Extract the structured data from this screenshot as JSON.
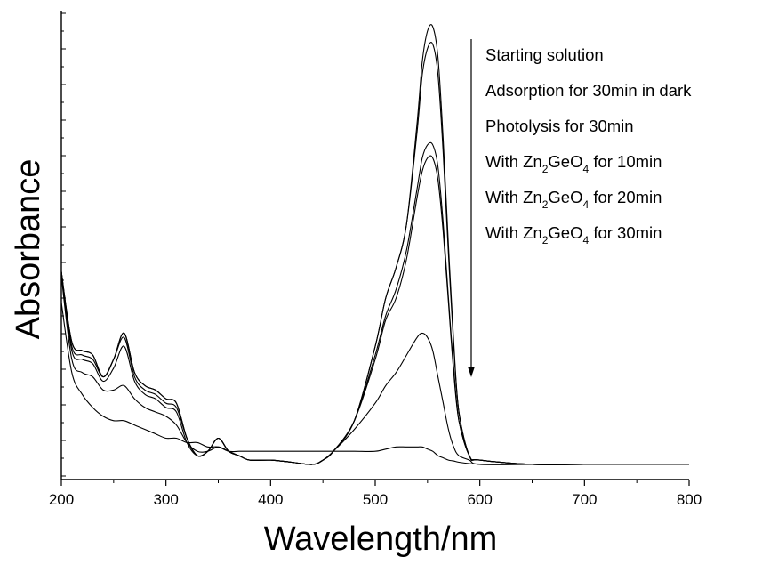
{
  "chart_data": {
    "type": "line",
    "title": "",
    "xlabel": "Wavelength/nm",
    "ylabel": "Absorbance",
    "xlim": [
      200,
      800
    ],
    "ylim": [
      0,
      1
    ],
    "yticks_labeled": false,
    "x_ticks": [
      200,
      300,
      400,
      500,
      600,
      700,
      800
    ],
    "x_tick_labels": [
      "200",
      "300",
      "400",
      "500",
      "600",
      "700",
      "800"
    ],
    "grid": false,
    "legend": {
      "placement": "top-right",
      "arrow": "downward",
      "entries": [
        {
          "text": "Starting solution"
        },
        {
          "text": "Adsorption for 30min in dark"
        },
        {
          "text": "Photolysis for 30min"
        },
        {
          "prefix": "With Zn",
          "sub1": "2",
          "mid": "GeO",
          "sub2": "4",
          "suffix": " for 10min"
        },
        {
          "prefix": "With Zn",
          "sub1": "2",
          "mid": "GeO",
          "sub2": "4",
          "suffix": " for 20min"
        },
        {
          "prefix": "With Zn",
          "sub1": "2",
          "mid": "GeO",
          "sub2": "4",
          "suffix": " for 30min"
        }
      ]
    },
    "x": [
      200,
      210,
      220,
      230,
      240,
      250,
      260,
      270,
      280,
      290,
      300,
      310,
      320,
      330,
      340,
      350,
      360,
      370,
      380,
      400,
      420,
      440,
      450,
      460,
      480,
      500,
      510,
      520,
      530,
      540,
      545,
      550,
      555,
      560,
      565,
      570,
      575,
      580,
      590,
      600,
      650,
      700,
      800
    ],
    "series": [
      {
        "values": [
          0.44,
          0.28,
          0.26,
          0.25,
          0.2,
          0.24,
          0.3,
          0.21,
          0.18,
          0.17,
          0.15,
          0.14,
          0.06,
          0.02,
          0.03,
          0.06,
          0.03,
          0.02,
          0.01,
          0.01,
          0.005,
          0.0,
          0.01,
          0.03,
          0.1,
          0.27,
          0.38,
          0.45,
          0.55,
          0.78,
          0.92,
          0.99,
          1.0,
          0.93,
          0.74,
          0.5,
          0.28,
          0.12,
          0.02,
          0.01,
          0.0,
          0.0,
          0.0
        ]
      },
      {
        "values": [
          0.44,
          0.28,
          0.26,
          0.25,
          0.2,
          0.24,
          0.3,
          0.21,
          0.18,
          0.17,
          0.15,
          0.14,
          0.06,
          0.02,
          0.03,
          0.06,
          0.03,
          0.02,
          0.01,
          0.01,
          0.005,
          0.0,
          0.01,
          0.03,
          0.1,
          0.27,
          0.38,
          0.45,
          0.55,
          0.76,
          0.89,
          0.95,
          0.96,
          0.89,
          0.71,
          0.48,
          0.27,
          0.12,
          0.02,
          0.01,
          0.0,
          0.0,
          0.0
        ]
      },
      {
        "values": [
          0.44,
          0.27,
          0.25,
          0.24,
          0.2,
          0.24,
          0.29,
          0.2,
          0.17,
          0.16,
          0.14,
          0.13,
          0.06,
          0.02,
          0.03,
          0.06,
          0.03,
          0.02,
          0.01,
          0.01,
          0.005,
          0.0,
          0.01,
          0.03,
          0.1,
          0.25,
          0.34,
          0.4,
          0.49,
          0.63,
          0.7,
          0.73,
          0.73,
          0.68,
          0.55,
          0.38,
          0.22,
          0.1,
          0.02,
          0.01,
          0.0,
          0.0,
          0.0
        ]
      },
      {
        "values": [
          0.44,
          0.26,
          0.24,
          0.23,
          0.19,
          0.22,
          0.27,
          0.19,
          0.16,
          0.15,
          0.13,
          0.12,
          0.05,
          0.02,
          0.03,
          0.06,
          0.03,
          0.02,
          0.01,
          0.01,
          0.005,
          0.0,
          0.01,
          0.03,
          0.1,
          0.24,
          0.33,
          0.38,
          0.47,
          0.61,
          0.67,
          0.7,
          0.7,
          0.65,
          0.53,
          0.37,
          0.21,
          0.1,
          0.02,
          0.01,
          0.0,
          0.0,
          0.0
        ]
      },
      {
        "values": [
          0.43,
          0.24,
          0.21,
          0.2,
          0.17,
          0.17,
          0.18,
          0.15,
          0.13,
          0.12,
          0.11,
          0.09,
          0.05,
          0.03,
          0.03,
          0.04,
          0.03,
          0.02,
          0.01,
          0.01,
          0.005,
          0.0,
          0.01,
          0.03,
          0.08,
          0.14,
          0.18,
          0.21,
          0.25,
          0.29,
          0.3,
          0.29,
          0.26,
          0.2,
          0.14,
          0.08,
          0.04,
          0.02,
          0.01,
          0.0,
          0.0,
          0.0,
          0.0
        ]
      },
      {
        "values": [
          0.37,
          0.21,
          0.16,
          0.13,
          0.11,
          0.1,
          0.1,
          0.09,
          0.08,
          0.07,
          0.06,
          0.06,
          0.05,
          0.05,
          0.04,
          0.04,
          0.03,
          0.03,
          0.03,
          0.03,
          0.03,
          0.03,
          0.03,
          0.03,
          0.03,
          0.03,
          0.035,
          0.04,
          0.04,
          0.04,
          0.04,
          0.035,
          0.03,
          0.02,
          0.015,
          0.01,
          0.008,
          0.005,
          0.002,
          0.001,
          0.0,
          0.0,
          0.0
        ]
      }
    ]
  }
}
